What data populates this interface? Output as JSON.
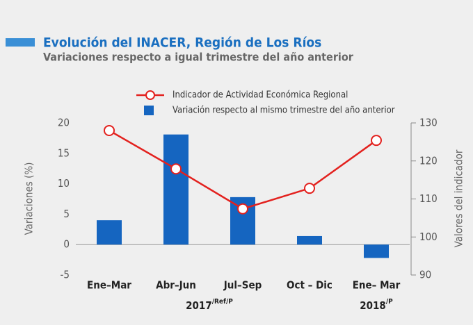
{
  "chart_data": {
    "type": "bar",
    "title": "Evolución del INACER, Región de Los Ríos",
    "subtitle": "Variaciones respecto a igual trimestre del año anterior",
    "y_label": "Variaciones (%)",
    "y2_label": "Valores del indicador",
    "categories": [
      "Ene–Mar",
      "Abr–Jun",
      "Jul–Sep",
      "Oct – Dic",
      "Ene– Mar"
    ],
    "years": [
      {
        "label": "2017",
        "sup": "/Ref/P"
      },
      {
        "label": "2018",
        "sup": "/P"
      }
    ],
    "series": [
      {
        "name": "Indicador de Actividad Económica Regional",
        "type": "line",
        "axis": "y2",
        "color": "#e3211e",
        "values": [
          128.0,
          117.9,
          107.4,
          112.8,
          125.4
        ]
      },
      {
        "name": "Variación respecto al mismo trimestre del año anterior",
        "type": "bar",
        "color": "#1565c0",
        "values": [
          4.0,
          18.1,
          7.8,
          1.4,
          -2.2
        ]
      }
    ],
    "ylim": [
      -5,
      20
    ],
    "yticks": [
      -5,
      0,
      5,
      10,
      15,
      20
    ],
    "y2lim": [
      90,
      130
    ],
    "y2ticks": [
      90,
      100,
      110,
      120,
      130
    ]
  }
}
